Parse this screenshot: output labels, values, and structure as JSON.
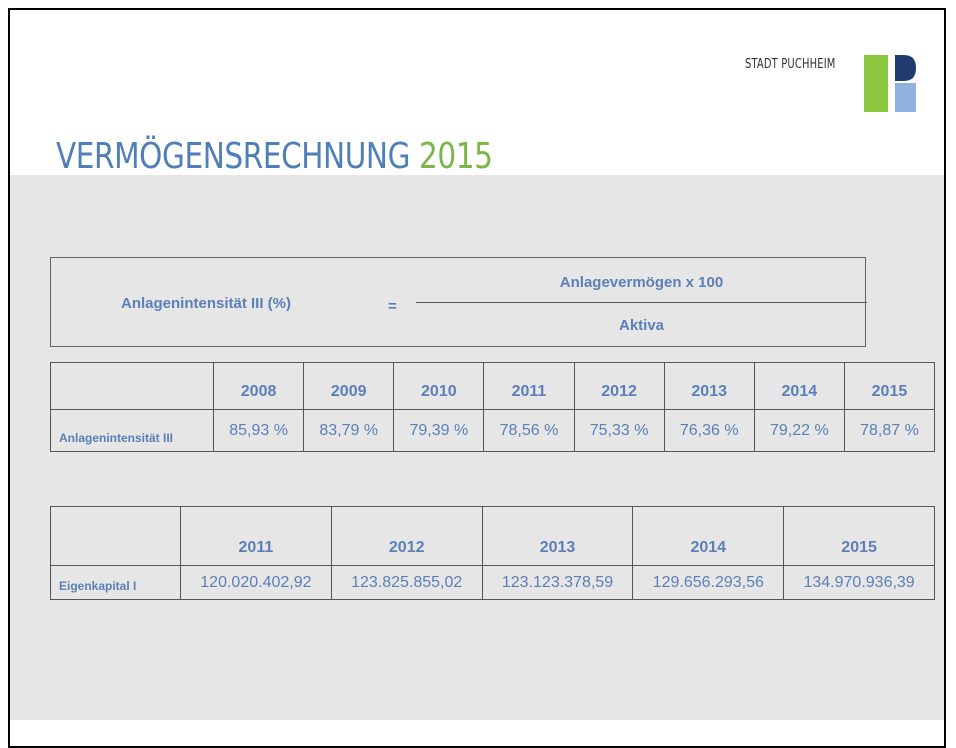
{
  "logo": {
    "text": "STADT PUCHHEIM"
  },
  "title": {
    "main": "VERMÖGENSRECHNUNG",
    "year": "2015"
  },
  "formula": {
    "label": "Anlagenintensität III (%)",
    "equals": "=",
    "numerator": "Anlagevermögen x 100",
    "denominator": "Aktiva"
  },
  "table1": {
    "years": [
      "2008",
      "2009",
      "2010",
      "2011",
      "2012",
      "2013",
      "2014",
      "2015"
    ],
    "row_label": "Anlagenintensität III",
    "values": [
      "85,93 %",
      "83,79 %",
      "79,39 %",
      "78,56 %",
      "75,33 %",
      "76,36 %",
      "79,22 %",
      "78,87 %"
    ]
  },
  "table2": {
    "years": [
      "2011",
      "2012",
      "2013",
      "2014",
      "2015"
    ],
    "row_label": "Eigenkapital I",
    "values": [
      "120.020.402,92",
      "123.825.855,02",
      "123.123.378,59",
      "129.656.293,56",
      "134.970.936,39"
    ]
  }
}
